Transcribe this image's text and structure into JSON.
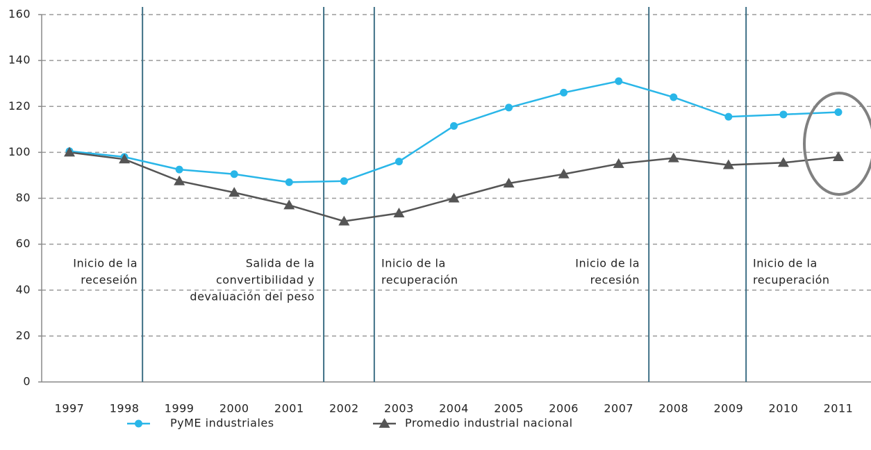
{
  "chart_data": {
    "type": "line",
    "categories": [
      "1997",
      "1998",
      "1999",
      "2000",
      "2001",
      "2002",
      "2003",
      "2004",
      "2005",
      "2006",
      "2007",
      "2008",
      "2009",
      "2010",
      "2011"
    ],
    "series": [
      {
        "name": "PyME industriales",
        "color": "#29b6e8",
        "marker": "circle",
        "values": [
          100.5,
          98,
          92.5,
          90.5,
          87,
          87.5,
          96,
          111.5,
          119.5,
          126,
          131,
          124,
          115.5,
          116.5,
          117.5
        ]
      },
      {
        "name": "Promedio industrial nacional",
        "color": "#555555",
        "marker": "triangle",
        "values": [
          100,
          97,
          87.5,
          82.5,
          77,
          70,
          73.5,
          80,
          86.5,
          90.5,
          95,
          97.5,
          94.5,
          95.5,
          98
        ]
      }
    ],
    "ylim": [
      0,
      160
    ],
    "yticks": [
      0,
      20,
      40,
      60,
      80,
      100,
      120,
      140,
      160
    ],
    "grid": true,
    "annotations": [
      {
        "lines": [
          "Inicio de la",
          "receseión"
        ]
      },
      {
        "lines": [
          "Salida de la",
          "convertibilidad y",
          "devaluación del peso"
        ]
      },
      {
        "lines": [
          "Inicio de la",
          "recuperación"
        ]
      },
      {
        "lines": [
          "Inicio de la",
          "recesión"
        ]
      },
      {
        "lines": [
          "Inicio de la",
          "recuperación"
        ]
      }
    ]
  }
}
